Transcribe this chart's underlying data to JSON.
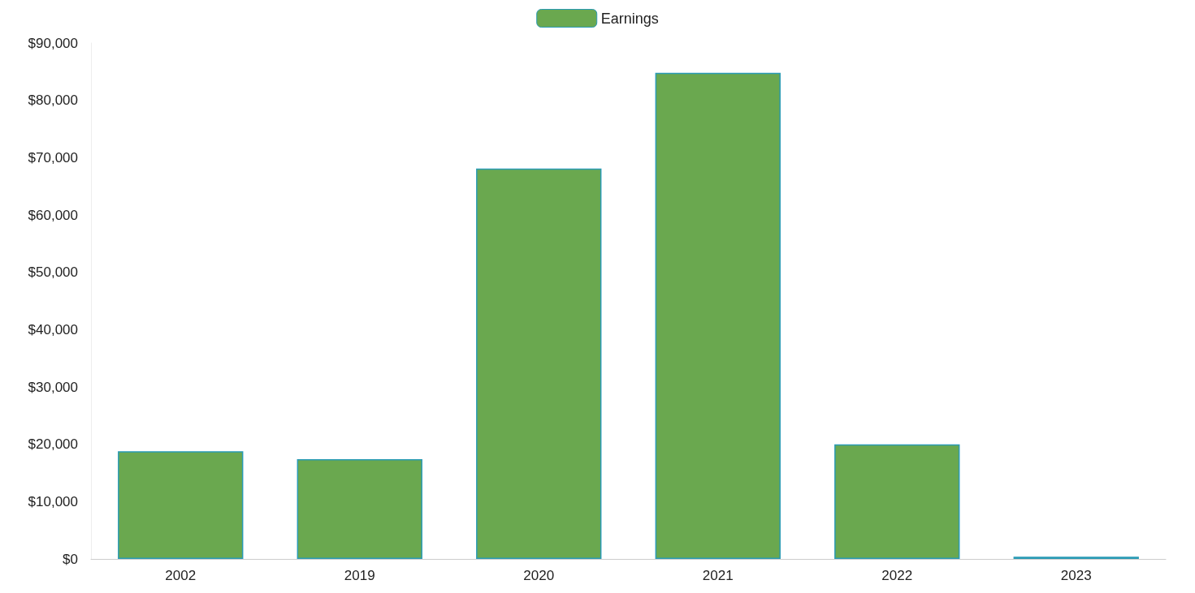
{
  "chart_data": {
    "type": "bar",
    "categories": [
      "2002",
      "2019",
      "2020",
      "2021",
      "2022",
      "2023"
    ],
    "series": [
      {
        "name": "Earnings",
        "color": "#6aa84f",
        "values": [
          18800,
          17400,
          68100,
          84800,
          20000,
          400
        ]
      }
    ],
    "ylim": [
      0,
      90000
    ],
    "yticks": [
      {
        "value": 0,
        "label": "$0"
      },
      {
        "value": 10000,
        "label": "$10,000"
      },
      {
        "value": 20000,
        "label": "$20,000"
      },
      {
        "value": 30000,
        "label": "$30,000"
      },
      {
        "value": 40000,
        "label": "$40,000"
      },
      {
        "value": 50000,
        "label": "$50,000"
      },
      {
        "value": 60000,
        "label": "$60,000"
      },
      {
        "value": 70000,
        "label": "$70,000"
      },
      {
        "value": 80000,
        "label": "$80,000"
      },
      {
        "value": 90000,
        "label": "$90,000"
      }
    ],
    "grid": false,
    "legend": "top"
  }
}
